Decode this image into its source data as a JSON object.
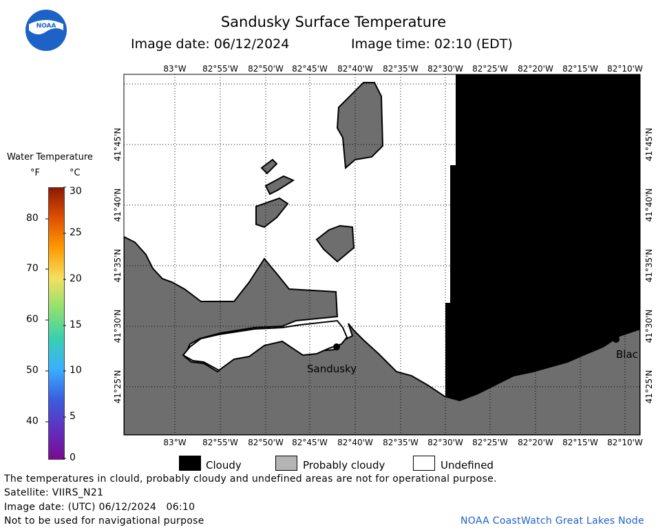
{
  "header": {
    "title": "Sandusky Surface Temperature",
    "image_date": "Image date: 06/12/2024",
    "image_time": "Image time: 02:10 (EDT)"
  },
  "logo": {
    "text": "NOAA",
    "icon": "noaa-logo-icon"
  },
  "colorbar": {
    "title": "Water Temperature",
    "unit_f": "°F",
    "unit_c": "°C",
    "f_ticks": [
      "80",
      "70",
      "60",
      "50",
      "40"
    ],
    "c_ticks": [
      "30",
      "25",
      "20",
      "15",
      "10",
      "5",
      "0"
    ],
    "colors_top_to_bottom": [
      "#8b1a00",
      "#e05000",
      "#ff9b00",
      "#f3e060",
      "#8fe070",
      "#38d0b0",
      "#3ab0ff",
      "#3a5ee0",
      "#6030c0",
      "#7a0a90"
    ]
  },
  "map": {
    "lon_labels": [
      "83°W",
      "82°55'W",
      "82°50'W",
      "82°45'W",
      "82°40'W",
      "82°35'W",
      "82°30'W",
      "82°25'W",
      "82°20'W",
      "82°15'W",
      "82°10'W"
    ],
    "lat_labels": [
      "41°45'N",
      "41°40'N",
      "41°35'N",
      "41°30'N",
      "41°25'N"
    ],
    "city_labels": [
      "Sandusky",
      "Blac"
    ],
    "colors": {
      "cloudy": "#000000",
      "land": "#6e6e6e",
      "undefined": "#ffffff"
    }
  },
  "legend": {
    "items": [
      {
        "label": "Cloudy",
        "color": "#000000"
      },
      {
        "label": "Probably cloudy",
        "color": "#b4b4b4"
      },
      {
        "label": "Undefined",
        "color": "#ffffff"
      }
    ]
  },
  "footer": {
    "disclaimer": "The temperatures in clould, probably cloudy and undefined areas are not for operational purpose.",
    "satellite": "Satellite: VIIRS_N21",
    "utc_date": "Image date: (UTC) 06/12/2024   06:10",
    "nav_warning": "Not to be used for navigational purpose",
    "credit": "NOAA CoastWatch Great Lakes Node"
  }
}
